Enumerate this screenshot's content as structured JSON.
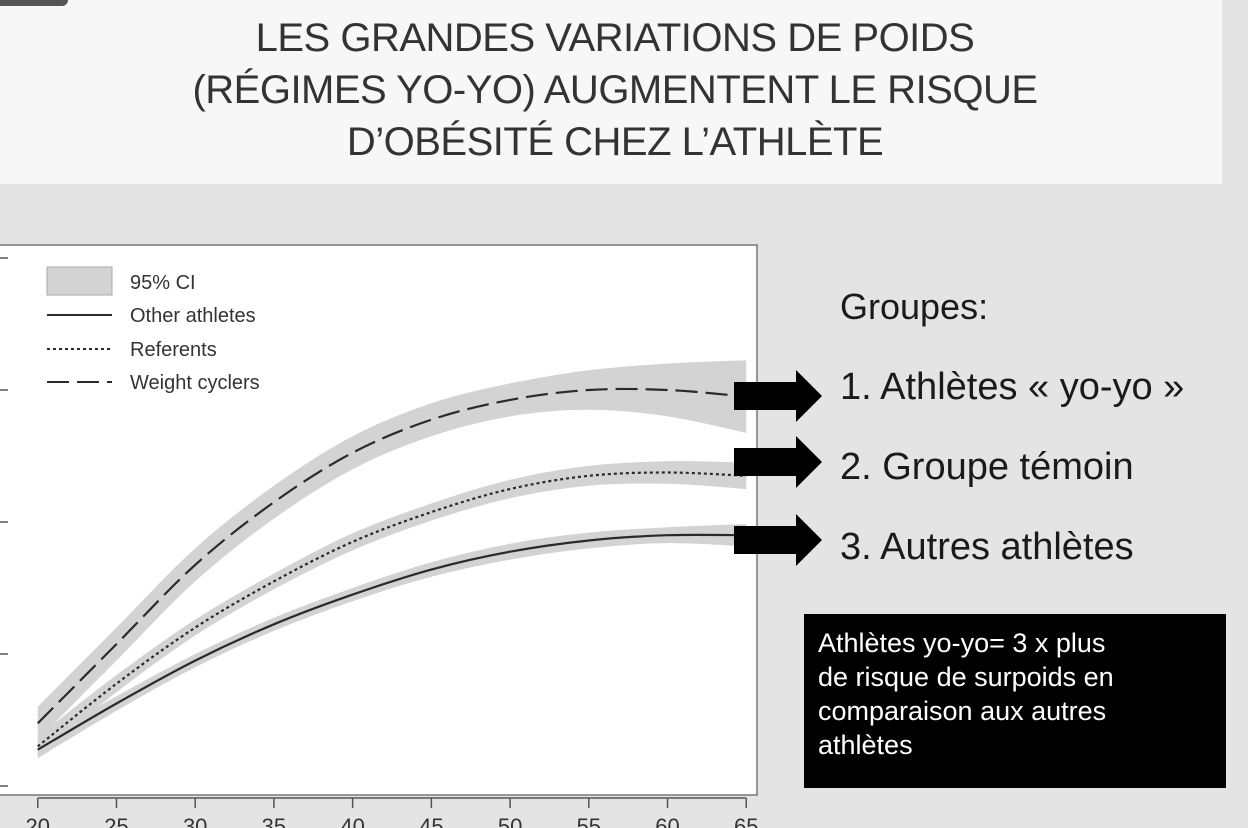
{
  "slide": {
    "title_lines": [
      "LES GRANDES VARIATIONS DE POIDS",
      "(RÉGIMES YO-YO) AUGMENTENT LE RISQUE",
      "D’OBÉSITÉ CHEZ L’ATHLÈTE"
    ],
    "groups_heading": "Groupes:",
    "groups": [
      "1. Athlètes « yo-yo »",
      "2. Groupe témoin",
      "3. Autres athlètes"
    ],
    "note_lines": [
      "Athlètes yo-yo= 3 x plus",
      "de risque de surpoids en",
      "comparaison aux autres",
      "athlètes"
    ],
    "colors": {
      "background": "#e4e4e4",
      "band": "#d3d3d3",
      "line": "#2a2a2a",
      "note_bg": "#000000",
      "arrow": "#000000"
    }
  },
  "chart_data": {
    "type": "line",
    "x": [
      20,
      25,
      30,
      35,
      40,
      45,
      50,
      55,
      60,
      65
    ],
    "xlim": [
      19,
      66
    ],
    "ylim": [
      22,
      30
    ],
    "xticks": [
      "20",
      "25",
      "30",
      "35",
      "40",
      "45",
      "50",
      "55",
      "60",
      "65"
    ],
    "yticks": [
      22,
      24,
      26,
      28,
      30
    ],
    "grid": false,
    "legend_position": "top-left",
    "legend": [
      "95% CI",
      "Other athletes",
      "Referents",
      "Weight cyclers"
    ],
    "series": [
      {
        "name": "Other athletes",
        "style": "solid",
        "values": [
          22.55,
          23.25,
          23.9,
          24.45,
          24.9,
          25.28,
          25.55,
          25.72,
          25.8,
          25.8
        ],
        "ci_lower": [
          22.42,
          23.14,
          23.8,
          24.35,
          24.8,
          25.17,
          25.43,
          25.6,
          25.68,
          25.63
        ],
        "ci_upper": [
          22.68,
          23.36,
          24.0,
          24.55,
          25.0,
          25.39,
          25.67,
          25.84,
          25.92,
          25.97
        ]
      },
      {
        "name": "Referents",
        "style": "dotted",
        "values": [
          22.6,
          23.55,
          24.4,
          25.1,
          25.7,
          26.15,
          26.5,
          26.7,
          26.75,
          26.7
        ],
        "ci_lower": [
          22.45,
          23.42,
          24.28,
          24.98,
          25.57,
          26.02,
          26.36,
          26.55,
          26.58,
          26.5
        ],
        "ci_upper": [
          22.75,
          23.68,
          24.52,
          25.22,
          25.83,
          26.28,
          26.64,
          26.85,
          26.92,
          26.9
        ]
      },
      {
        "name": "Weight cyclers",
        "style": "dashed",
        "values": [
          22.95,
          24.15,
          25.35,
          26.3,
          27.05,
          27.55,
          27.85,
          28.0,
          28.0,
          27.9
        ],
        "ci_lower": [
          22.7,
          23.9,
          25.1,
          26.05,
          26.8,
          27.3,
          27.6,
          27.7,
          27.6,
          27.35
        ],
        "ci_upper": [
          23.2,
          24.4,
          25.6,
          26.55,
          27.3,
          27.8,
          28.1,
          28.3,
          28.4,
          28.45
        ]
      }
    ]
  }
}
